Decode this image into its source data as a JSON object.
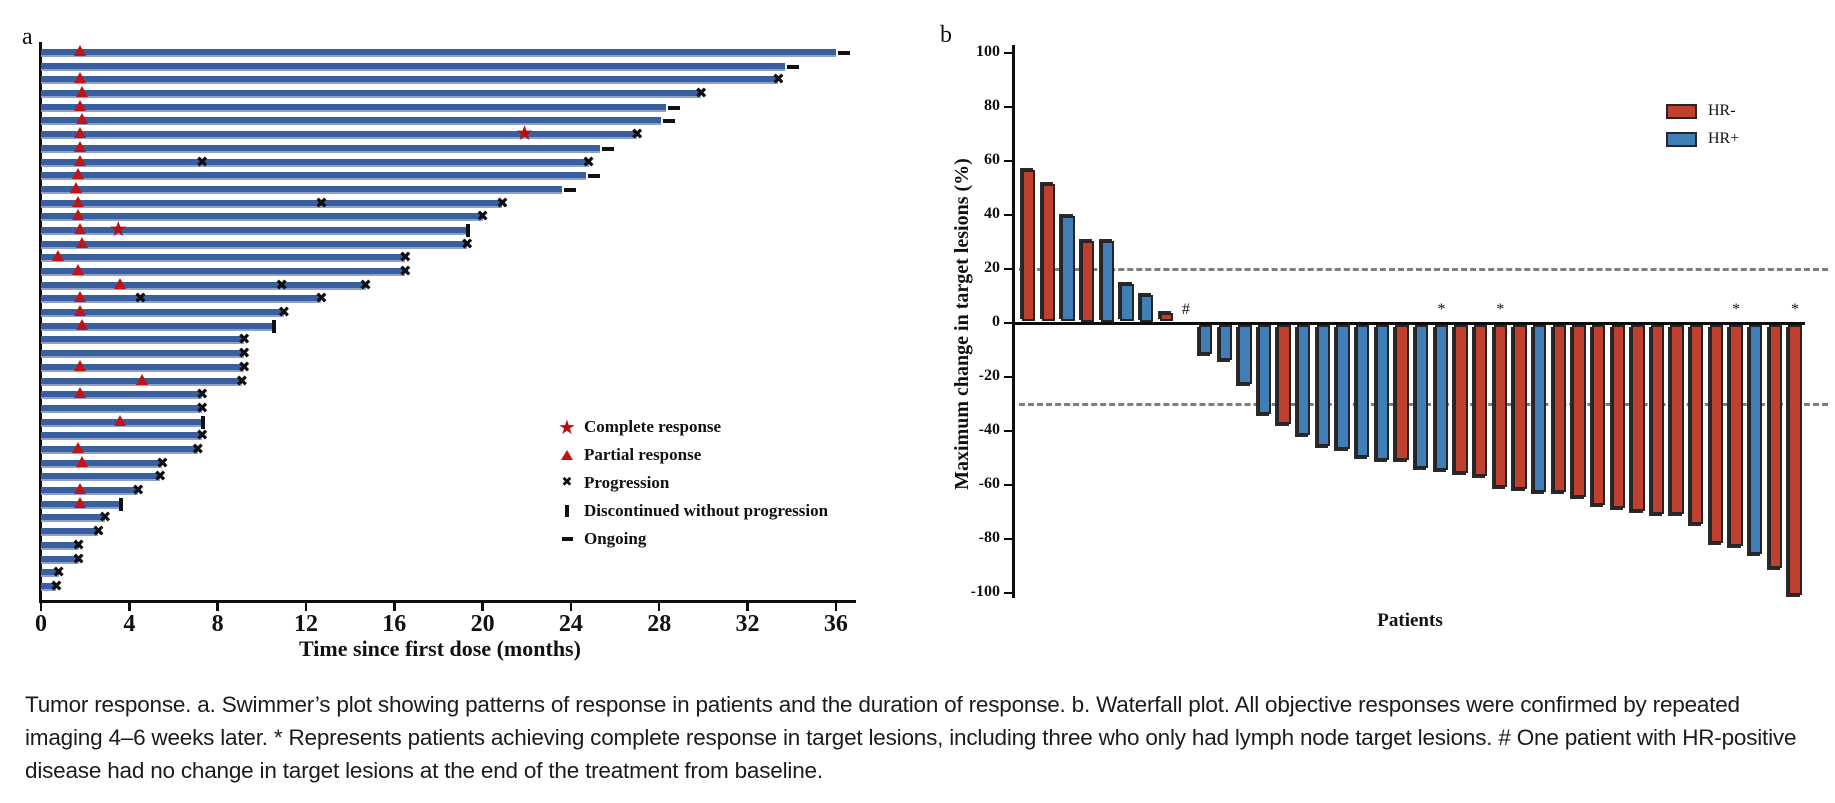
{
  "panels": {
    "a": "a",
    "b": "b"
  },
  "chart_data": [
    {
      "id": "swimmer-plot",
      "type": "bar",
      "orientation": "horizontal",
      "xlabel": "Time since first dose (months)",
      "xlim": [
        0,
        38
      ],
      "x_ticks": [
        0,
        4,
        8,
        12,
        16,
        20,
        24,
        28,
        32,
        36
      ],
      "bar_color": "#3a5f9e",
      "legend": [
        "Complete response",
        "Partial response",
        "Progression",
        "Discontinued without progression",
        "Ongoing"
      ],
      "patients": [
        {
          "months": 36.0,
          "end": "ongoing",
          "partial_response": [
            1.8
          ]
        },
        {
          "months": 33.7,
          "end": "ongoing"
        },
        {
          "months": 33.4,
          "end": "progression",
          "partial_response": [
            1.8
          ]
        },
        {
          "months": 29.9,
          "end": "progression",
          "partial_response": [
            1.9
          ]
        },
        {
          "months": 28.3,
          "end": "ongoing",
          "partial_response": [
            1.8
          ]
        },
        {
          "months": 28.1,
          "end": "ongoing",
          "partial_response": [
            1.9
          ]
        },
        {
          "months": 27.0,
          "end": "progression",
          "partial_response": [
            1.8
          ],
          "complete_response": [
            21.9
          ]
        },
        {
          "months": 25.3,
          "end": "ongoing",
          "partial_response": [
            1.8
          ]
        },
        {
          "months": 24.8,
          "end": "progression",
          "partial_response": [
            1.8
          ],
          "progression_marks": [
            7.3
          ]
        },
        {
          "months": 24.7,
          "end": "ongoing",
          "partial_response": [
            1.7
          ]
        },
        {
          "months": 23.6,
          "end": "ongoing",
          "partial_response": [
            1.6
          ]
        },
        {
          "months": 20.9,
          "end": "progression",
          "partial_response": [
            1.7
          ],
          "progression_marks": [
            12.7
          ]
        },
        {
          "months": 20.0,
          "end": "progression",
          "partial_response": [
            1.7
          ]
        },
        {
          "months": 19.3,
          "end": "discontinued",
          "partial_response": [
            1.8
          ],
          "complete_response": [
            3.5
          ]
        },
        {
          "months": 19.3,
          "end": "progression",
          "partial_response": [
            1.9
          ]
        },
        {
          "months": 16.5,
          "end": "progression",
          "partial_response": [
            0.8
          ]
        },
        {
          "months": 16.5,
          "end": "progression",
          "partial_response": [
            1.7
          ]
        },
        {
          "months": 14.7,
          "end": "progression",
          "partial_response": [
            3.6
          ],
          "progression_marks": [
            10.9
          ]
        },
        {
          "months": 12.7,
          "end": "progression",
          "partial_response": [
            1.8
          ],
          "progression_marks": [
            4.5
          ]
        },
        {
          "months": 11.0,
          "end": "progression",
          "partial_response": [
            1.8
          ]
        },
        {
          "months": 10.5,
          "end": "discontinued",
          "partial_response": [
            1.9
          ]
        },
        {
          "months": 9.2,
          "end": "progression"
        },
        {
          "months": 9.2,
          "end": "progression"
        },
        {
          "months": 9.2,
          "end": "progression",
          "partial_response": [
            1.8
          ]
        },
        {
          "months": 9.1,
          "end": "progression",
          "partial_response": [
            4.6
          ]
        },
        {
          "months": 7.3,
          "end": "progression",
          "partial_response": [
            1.8
          ]
        },
        {
          "months": 7.3,
          "end": "progression"
        },
        {
          "months": 7.3,
          "end": "discontinued",
          "partial_response": [
            3.6
          ]
        },
        {
          "months": 7.3,
          "end": "progression"
        },
        {
          "months": 7.1,
          "end": "progression",
          "partial_response": [
            1.7
          ]
        },
        {
          "months": 5.5,
          "end": "progression",
          "partial_response": [
            1.9
          ]
        },
        {
          "months": 5.4,
          "end": "progression"
        },
        {
          "months": 4.4,
          "end": "progression",
          "partial_response": [
            1.8
          ]
        },
        {
          "months": 3.6,
          "end": "discontinued",
          "partial_response": [
            1.8
          ]
        },
        {
          "months": 2.9,
          "end": "progression"
        },
        {
          "months": 2.6,
          "end": "progression"
        },
        {
          "months": 1.7,
          "end": "progression"
        },
        {
          "months": 1.7,
          "end": "progression"
        },
        {
          "months": 0.8,
          "end": "progression"
        },
        {
          "months": 0.7,
          "end": "progression"
        }
      ]
    },
    {
      "id": "waterfall-plot",
      "type": "bar",
      "xlabel": "Patients",
      "ylabel": "Maximum change in target lesions (%)",
      "ylim": [
        -100,
        100
      ],
      "y_ticks": [
        100,
        80,
        60,
        40,
        20,
        0,
        -20,
        -40,
        -60,
        -80,
        -100
      ],
      "reference_lines": [
        20,
        -30
      ],
      "series_colors": {
        "HR-": "#c04030",
        "HR+": "#3f7eb6"
      },
      "legend": [
        "HR-",
        "HR+"
      ],
      "values": [
        {
          "value": 56,
          "group": "HR-"
        },
        {
          "value": 51,
          "group": "HR-"
        },
        {
          "value": 39,
          "group": "HR+"
        },
        {
          "value": 30,
          "group": "HR-"
        },
        {
          "value": 30,
          "group": "HR+"
        },
        {
          "value": 14,
          "group": "HR+"
        },
        {
          "value": 10,
          "group": "HR+"
        },
        {
          "value": 3,
          "group": "HR-"
        },
        {
          "value": 0,
          "group": "HR+",
          "annotation": "#"
        },
        {
          "value": -11,
          "group": "HR+"
        },
        {
          "value": -13,
          "group": "HR+"
        },
        {
          "value": -22,
          "group": "HR+"
        },
        {
          "value": -33,
          "group": "HR+"
        },
        {
          "value": -37,
          "group": "HR-"
        },
        {
          "value": -41,
          "group": "HR+"
        },
        {
          "value": -45,
          "group": "HR+"
        },
        {
          "value": -46,
          "group": "HR+"
        },
        {
          "value": -49,
          "group": "HR+"
        },
        {
          "value": -50,
          "group": "HR+"
        },
        {
          "value": -50,
          "group": "HR-"
        },
        {
          "value": -53,
          "group": "HR+"
        },
        {
          "value": -54,
          "group": "HR+",
          "annotation": "*"
        },
        {
          "value": -55,
          "group": "HR-"
        },
        {
          "value": -56,
          "group": "HR-"
        },
        {
          "value": -60,
          "group": "HR-",
          "annotation": "*"
        },
        {
          "value": -61,
          "group": "HR-"
        },
        {
          "value": -62,
          "group": "HR+"
        },
        {
          "value": -62,
          "group": "HR-"
        },
        {
          "value": -64,
          "group": "HR-"
        },
        {
          "value": -67,
          "group": "HR-"
        },
        {
          "value": -68,
          "group": "HR-"
        },
        {
          "value": -69,
          "group": "HR-"
        },
        {
          "value": -70,
          "group": "HR-"
        },
        {
          "value": -70,
          "group": "HR-"
        },
        {
          "value": -74,
          "group": "HR-"
        },
        {
          "value": -81,
          "group": "HR-"
        },
        {
          "value": -82,
          "group": "HR-",
          "annotation": "*"
        },
        {
          "value": -85,
          "group": "HR+"
        },
        {
          "value": -90,
          "group": "HR-"
        },
        {
          "value": -100,
          "group": "HR-",
          "annotation": "*"
        }
      ]
    }
  ],
  "caption": {
    "text": "Tumor response. a. Swimmer’s plot showing patterns of response in patients and the duration of response. b. Waterfall plot. All objective responses were confirmed by repeated imaging 4–6 weeks later. * Represents patients achieving complete response in target lesions, including three who only had lymph node target lesions. # One patient with HR-positive disease had no change in target lesions at the end of the treatment from baseline."
  }
}
